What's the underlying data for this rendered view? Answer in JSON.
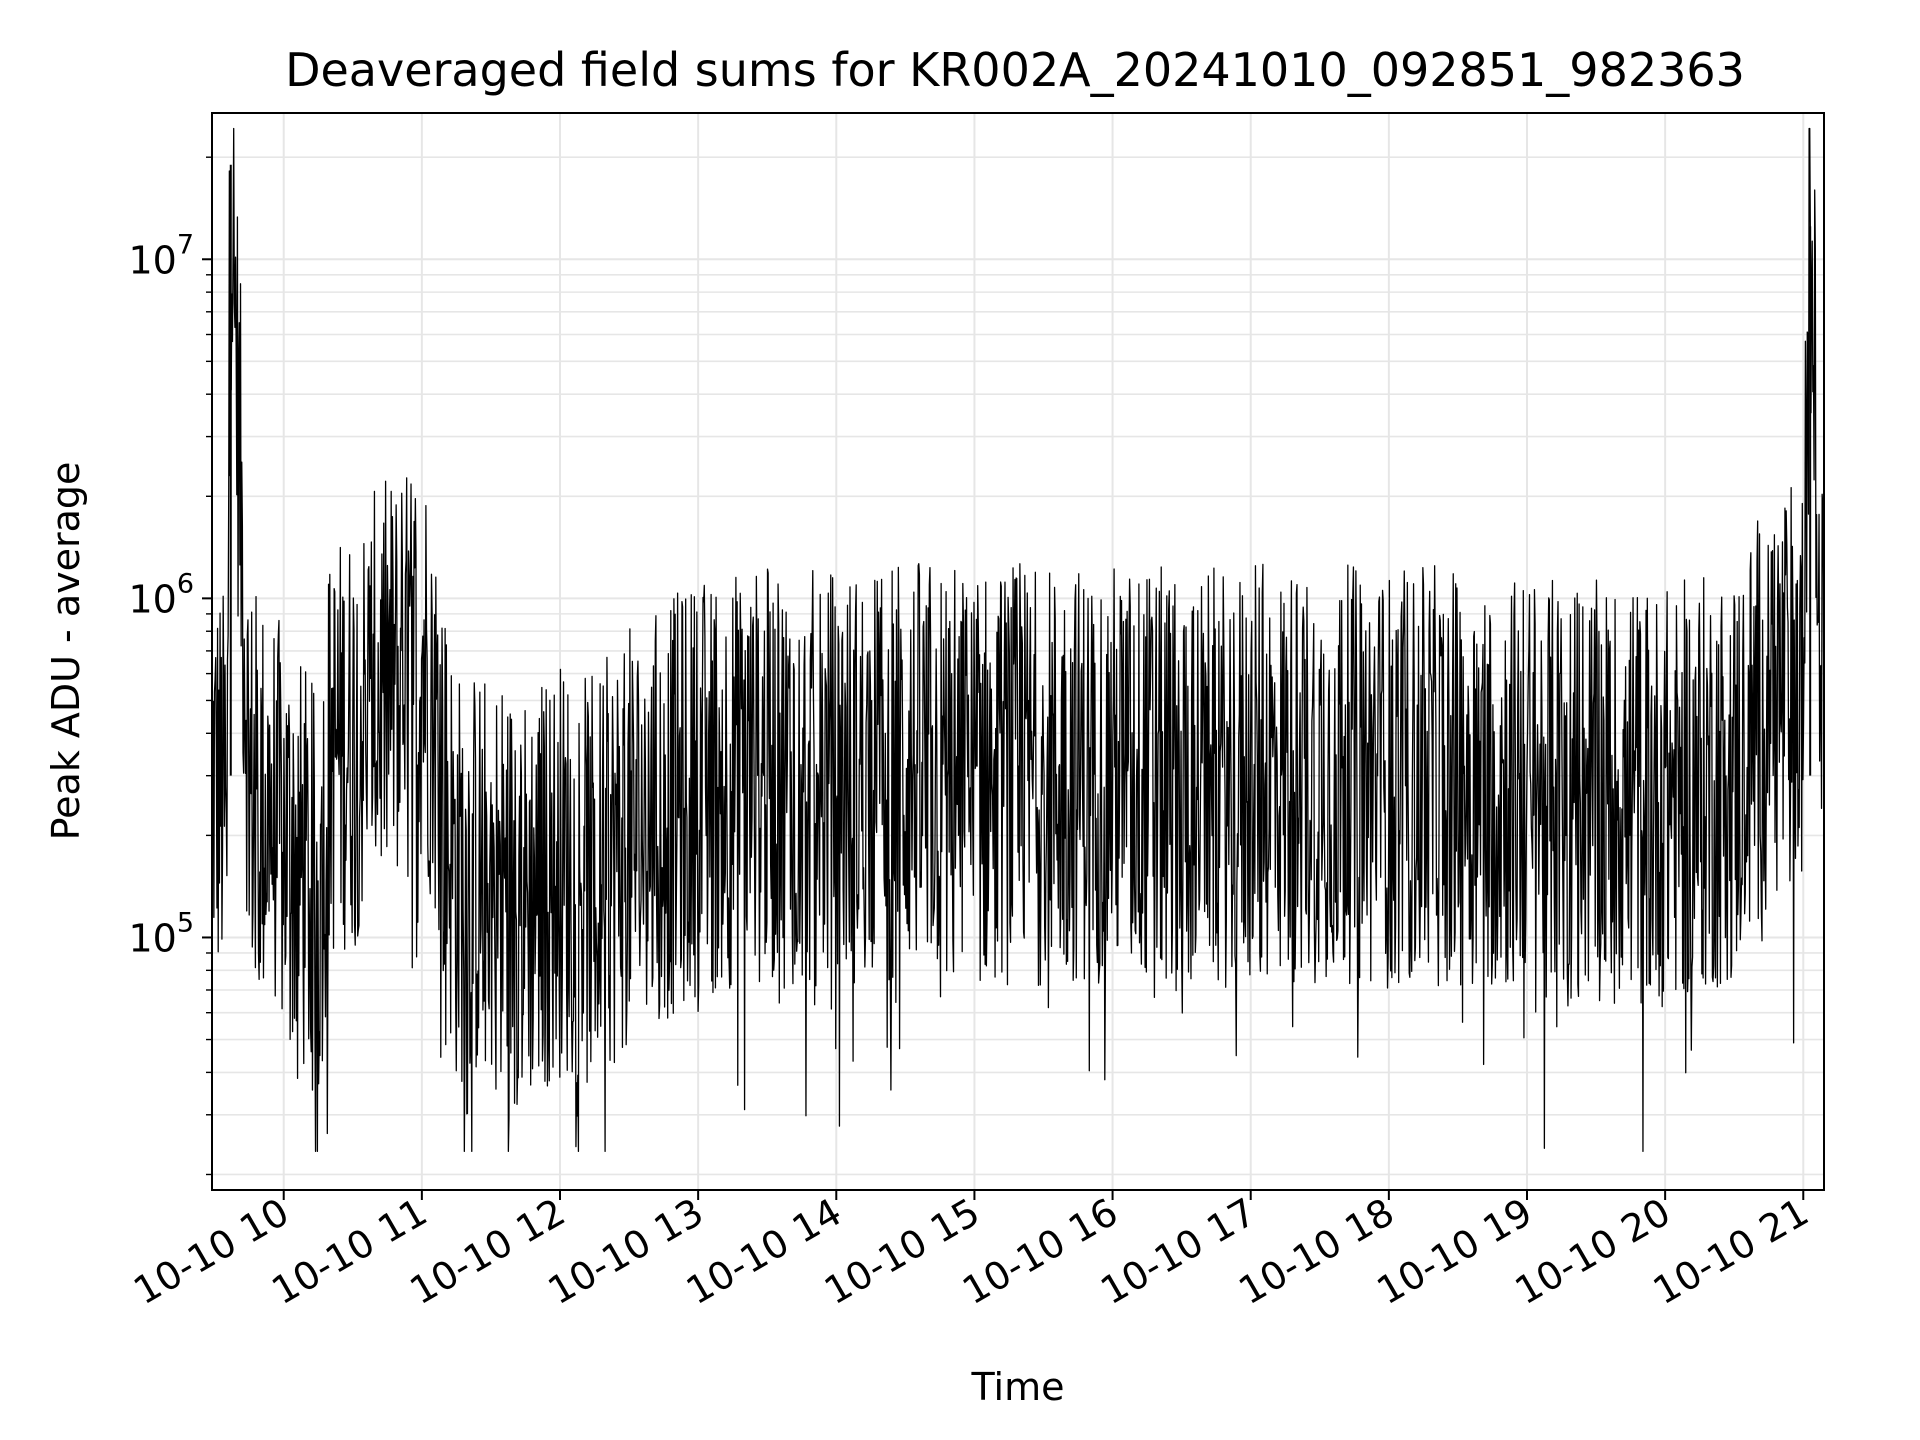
{
  "chart_data": {
    "type": "line",
    "title": "Deaveraged field sums for KR002A_20241010_092851_982363",
    "xlabel": "Time",
    "ylabel": "Peak ADU - average",
    "yscale": "log",
    "ylim": [
      18000,
      27000000
    ],
    "xlim": [
      "2024-10-10 09:28:51",
      "2024-10-10 21:09:00"
    ],
    "grid": true,
    "line_color": "#000000",
    "grid_color": "#e6e6e6",
    "x_ticks": [
      {
        "value": "2024-10-10 10:00",
        "label": "10-10 10"
      },
      {
        "value": "2024-10-10 11:00",
        "label": "10-10 11"
      },
      {
        "value": "2024-10-10 12:00",
        "label": "10-10 12"
      },
      {
        "value": "2024-10-10 13:00",
        "label": "10-10 13"
      },
      {
        "value": "2024-10-10 14:00",
        "label": "10-10 14"
      },
      {
        "value": "2024-10-10 15:00",
        "label": "10-10 15"
      },
      {
        "value": "2024-10-10 16:00",
        "label": "10-10 16"
      },
      {
        "value": "2024-10-10 17:00",
        "label": "10-10 17"
      },
      {
        "value": "2024-10-10 18:00",
        "label": "10-10 18"
      },
      {
        "value": "2024-10-10 19:00",
        "label": "10-10 19"
      },
      {
        "value": "2024-10-10 20:00",
        "label": "10-10 20"
      },
      {
        "value": "2024-10-10 21:00",
        "label": "10-10 21"
      }
    ],
    "y_ticks": [
      {
        "value": 100000,
        "base": "10",
        "exp": "5"
      },
      {
        "value": 1000000,
        "base": "10",
        "exp": "6"
      },
      {
        "value": 10000000,
        "base": "10",
        "exp": "7"
      }
    ],
    "series": [
      {
        "x": [
          "2024-10-10 09:29",
          "2024-10-10 09:35",
          "2024-10-10 09:37",
          "2024-10-10 09:45",
          "2024-10-10 10:00",
          "2024-10-10 10:10",
          "2024-10-10 10:15",
          "2024-10-10 10:20",
          "2024-10-10 10:30",
          "2024-10-10 10:40",
          "2024-10-10 10:45",
          "2024-10-10 10:55",
          "2024-10-10 11:00",
          "2024-10-10 11:05",
          "2024-10-10 11:10",
          "2024-10-10 11:15",
          "2024-10-10 11:30",
          "2024-10-10 11:45",
          "2024-10-10 12:00",
          "2024-10-10 12:15",
          "2024-10-10 12:30",
          "2024-10-10 12:45",
          "2024-10-10 13:00",
          "2024-10-10 13:30",
          "2024-10-10 14:00",
          "2024-10-10 14:30",
          "2024-10-10 15:00",
          "2024-10-10 15:30",
          "2024-10-10 16:00",
          "2024-10-10 16:30",
          "2024-10-10 17:00",
          "2024-10-10 17:30",
          "2024-10-10 18:00",
          "2024-10-10 18:30",
          "2024-10-10 19:00",
          "2024-10-10 19:30",
          "2024-10-10 20:00",
          "2024-10-10 20:30",
          "2024-10-10 20:45",
          "2024-10-10 21:00",
          "2024-10-10 21:03",
          "2024-10-10 21:09"
        ],
        "values": [
          300000,
          250000,
          19000000,
          280000,
          200000,
          150000,
          120000,
          350000,
          400000,
          500000,
          550000,
          600000,
          700000,
          500000,
          250000,
          150000,
          150000,
          130000,
          160000,
          140000,
          200000,
          230000,
          280000,
          300000,
          290000,
          320000,
          300000,
          300000,
          310000,
          290000,
          300000,
          310000,
          290000,
          300000,
          280000,
          270000,
          260000,
          300000,
          500000,
          550000,
          12500000,
          500000
        ]
      }
    ]
  }
}
